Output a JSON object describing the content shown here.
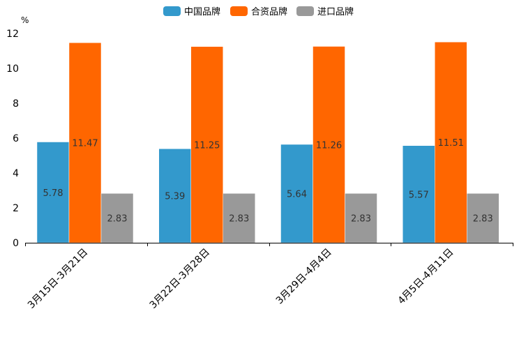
{
  "chart_data": {
    "type": "bar",
    "title": "",
    "xlabel": "",
    "ylabel": "%",
    "ylim": [
      0,
      12
    ],
    "yticks": [
      0,
      2,
      4,
      6,
      8,
      10,
      12
    ],
    "grid": false,
    "legend_position": "top-center",
    "categories": [
      "3月15日-3月21日",
      "3月22日-3月28日",
      "3月29日-4月4日",
      "4月5日-4月11日"
    ],
    "series": [
      {
        "name": "中国品牌",
        "color": "#3399cc",
        "values": [
          5.78,
          5.39,
          5.64,
          5.57
        ]
      },
      {
        "name": "合资品牌",
        "color": "#ff6600",
        "values": [
          11.47,
          11.25,
          11.26,
          11.51
        ]
      },
      {
        "name": "进口品牌",
        "color": "#999999",
        "values": [
          2.83,
          2.83,
          2.83,
          2.83
        ]
      }
    ]
  }
}
